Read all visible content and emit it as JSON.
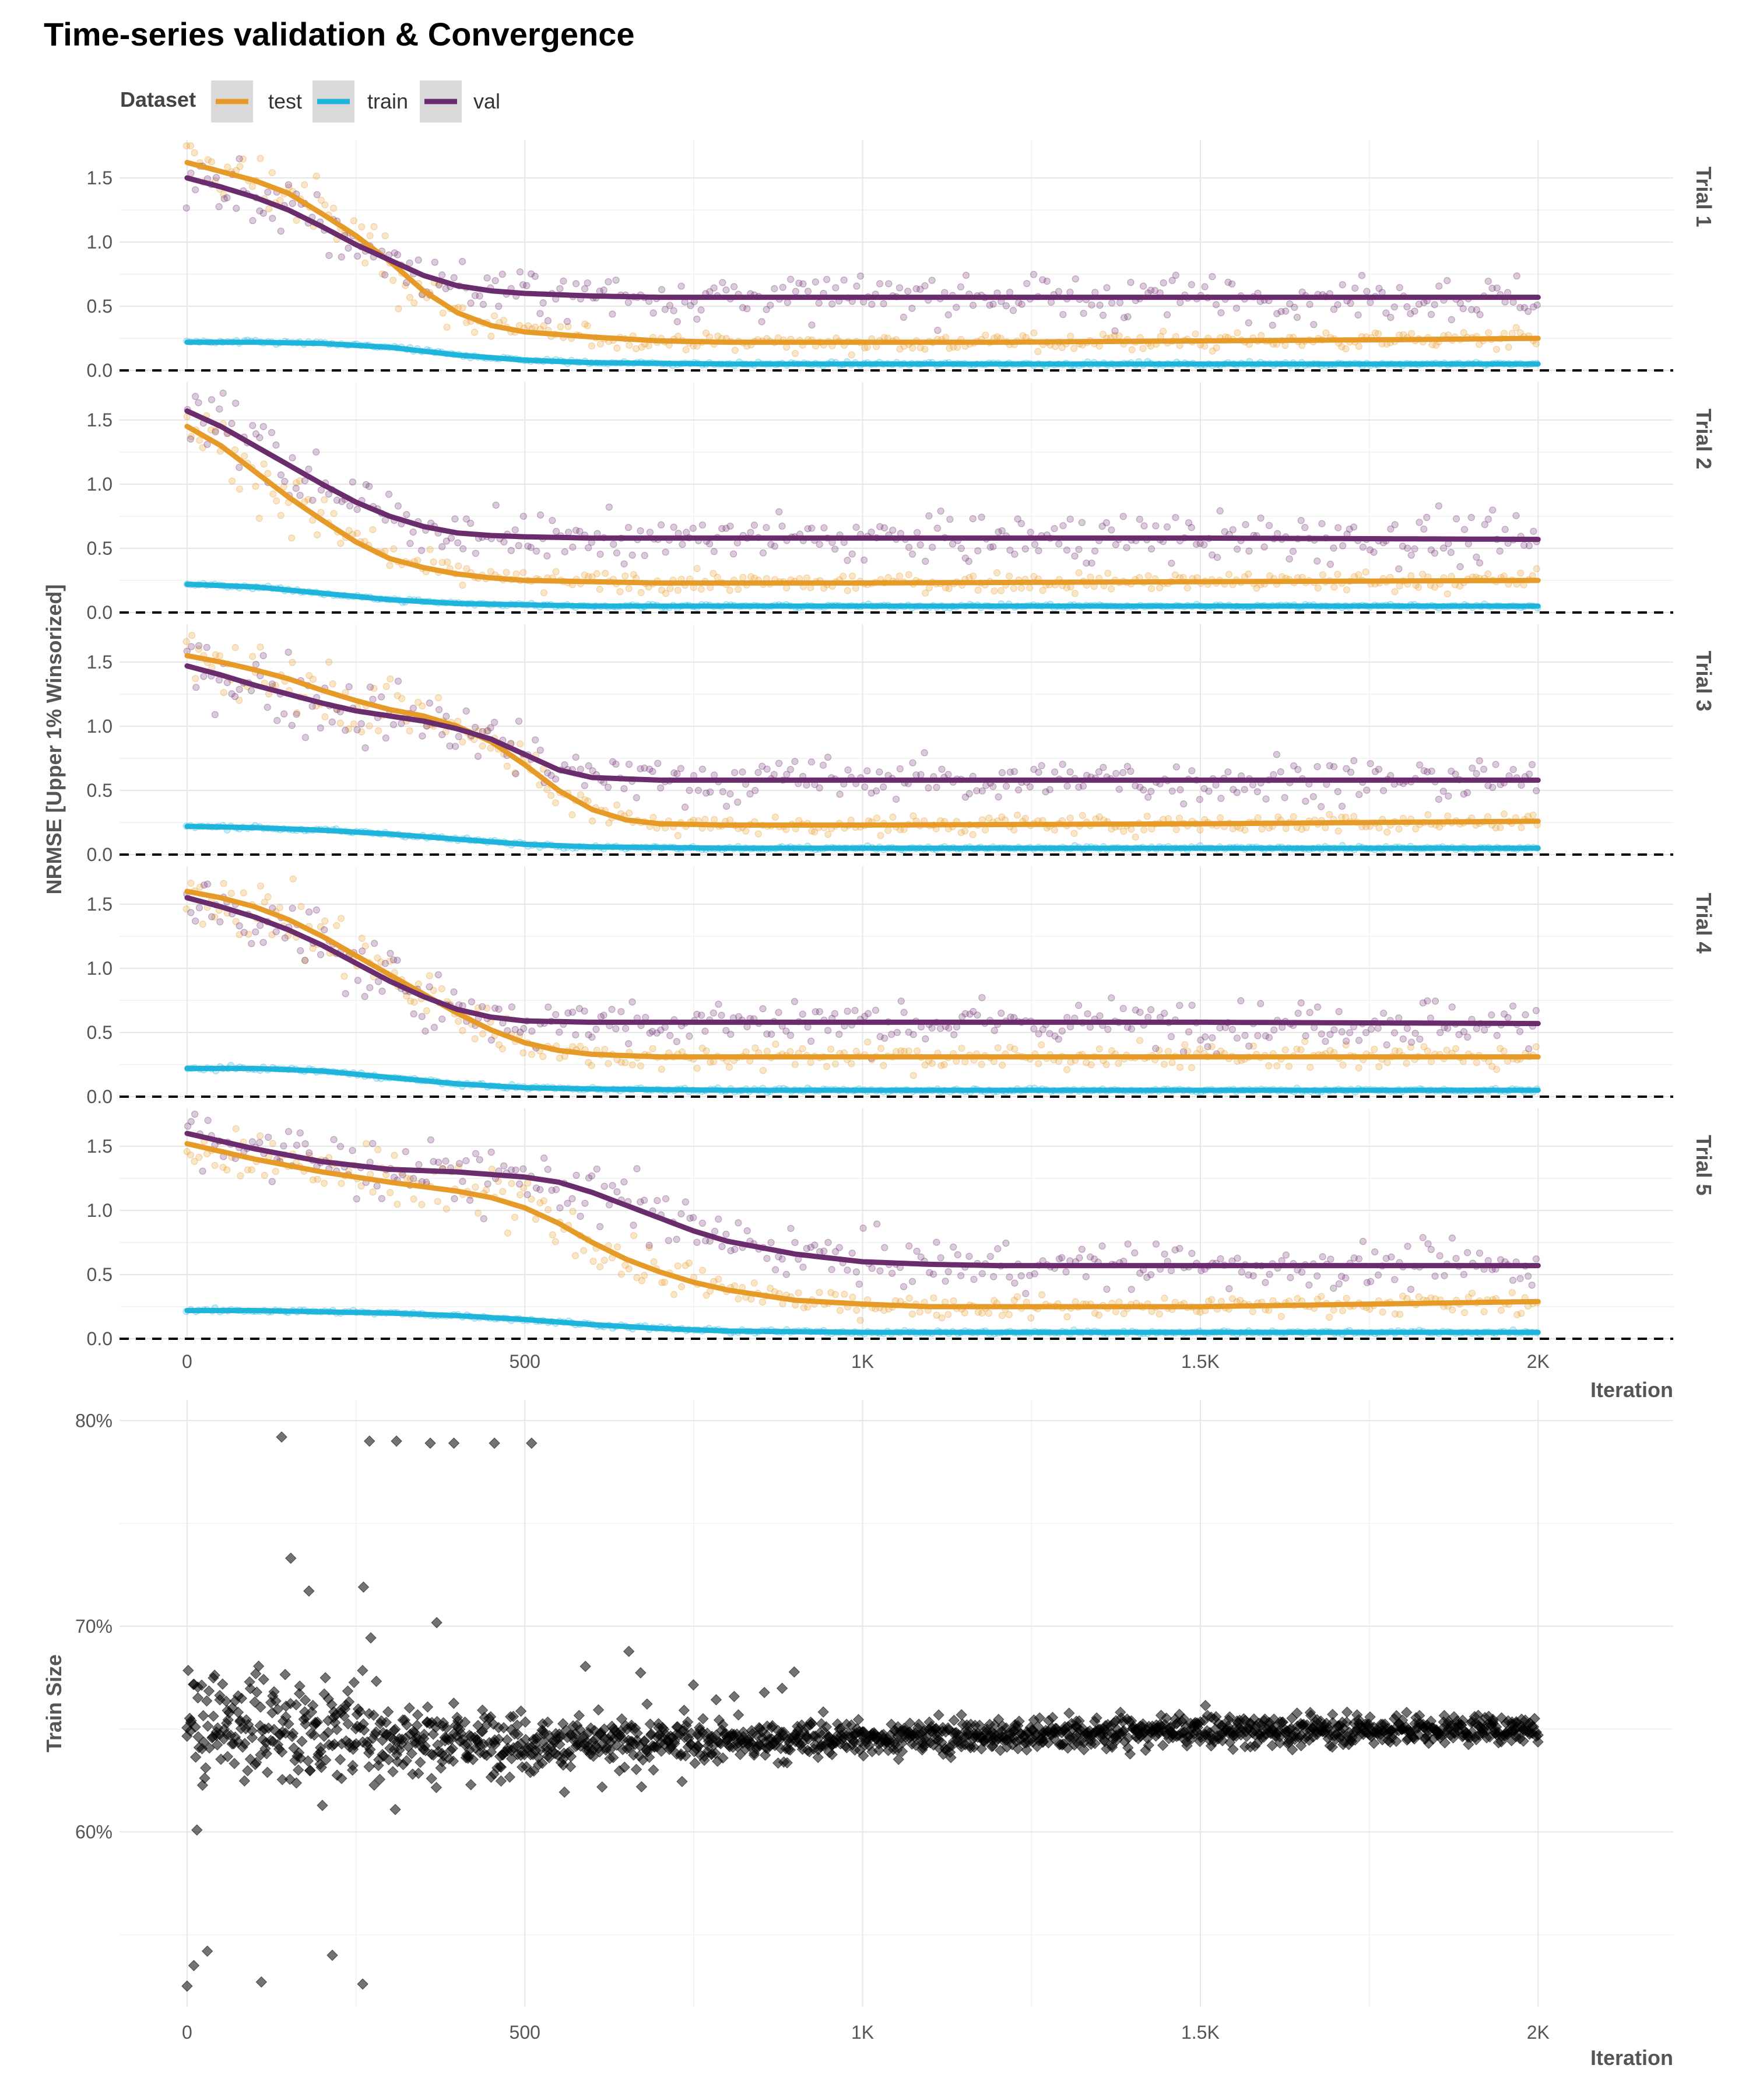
{
  "title": "Time-series validation & Convergence",
  "legend": {
    "title": "Dataset",
    "items": [
      {
        "label": "test",
        "color": "#E69A28"
      },
      {
        "label": "train",
        "color": "#1EB4DC"
      },
      {
        "label": "val",
        "color": "#6B2C6E"
      }
    ]
  },
  "chart_data": [
    {
      "type": "scatter",
      "subtype": "faceted scatter with smoothed trend lines",
      "title": "Time-series validation & Convergence",
      "xlabel": "Iteration",
      "ylabel": "NRMSE [Upper 1% Winsorized]",
      "xlim": [
        -100,
        2200
      ],
      "ylim": [
        0,
        1.75
      ],
      "x_ticks": [
        0,
        500,
        1000,
        1500,
        2000
      ],
      "x_tick_labels": [
        "0",
        "500",
        "1K",
        "1.5K",
        "2K"
      ],
      "y_ticks": [
        0,
        0.5,
        1,
        1.5
      ],
      "y_tick_labels": [
        "0.0",
        "0.5",
        "1.0",
        "1.5"
      ],
      "reference_line": {
        "y": 0,
        "style": "dashed",
        "color": "#000000"
      },
      "grid": true,
      "legend_position": "top",
      "point_alpha": 0.25,
      "facets": [
        {
          "label": "Trial 1",
          "series": [
            {
              "name": "test",
              "color": "#E69A28",
              "x": [
                0,
                50,
                100,
                150,
                200,
                250,
                300,
                350,
                400,
                450,
                500,
                600,
                700,
                800,
                1000,
                1200,
                1500,
                1800,
                2000
              ],
              "y": [
                1.62,
                1.55,
                1.48,
                1.38,
                1.22,
                1.05,
                0.85,
                0.62,
                0.45,
                0.35,
                0.3,
                0.26,
                0.23,
                0.22,
                0.22,
                0.22,
                0.23,
                0.24,
                0.25
              ]
            },
            {
              "name": "train",
              "color": "#1EB4DC",
              "x": [
                0,
                100,
                200,
                300,
                400,
                500,
                600,
                800,
                1000,
                1500,
                2000
              ],
              "y": [
                0.22,
                0.22,
                0.21,
                0.18,
                0.12,
                0.08,
                0.06,
                0.05,
                0.05,
                0.05,
                0.05
              ]
            },
            {
              "name": "val",
              "color": "#6B2C6E",
              "x": [
                0,
                50,
                100,
                150,
                200,
                250,
                300,
                350,
                400,
                450,
                500,
                600,
                700,
                800,
                1000,
                1500,
                2000
              ],
              "y": [
                1.5,
                1.43,
                1.35,
                1.25,
                1.12,
                0.98,
                0.86,
                0.74,
                0.66,
                0.62,
                0.6,
                0.58,
                0.57,
                0.57,
                0.57,
                0.57,
                0.57
              ]
            }
          ]
        },
        {
          "label": "Trial 2",
          "series": [
            {
              "name": "test",
              "color": "#E69A28",
              "x": [
                0,
                50,
                100,
                150,
                200,
                250,
                300,
                350,
                400,
                450,
                500,
                600,
                700,
                800,
                1000,
                1500,
                2000
              ],
              "y": [
                1.45,
                1.3,
                1.1,
                0.9,
                0.72,
                0.55,
                0.42,
                0.35,
                0.3,
                0.27,
                0.25,
                0.24,
                0.23,
                0.23,
                0.23,
                0.24,
                0.25
              ]
            },
            {
              "name": "train",
              "color": "#1EB4DC",
              "x": [
                0,
                100,
                200,
                300,
                400,
                500,
                600,
                800,
                1000,
                1500,
                2000
              ],
              "y": [
                0.22,
                0.2,
                0.15,
                0.1,
                0.07,
                0.06,
                0.05,
                0.05,
                0.05,
                0.05,
                0.05
              ]
            },
            {
              "name": "val",
              "color": "#6B2C6E",
              "x": [
                0,
                50,
                100,
                150,
                200,
                250,
                300,
                350,
                400,
                450,
                500,
                600,
                800,
                1000,
                1500,
                2000
              ],
              "y": [
                1.57,
                1.45,
                1.3,
                1.15,
                1.0,
                0.86,
                0.75,
                0.67,
                0.62,
                0.6,
                0.59,
                0.58,
                0.58,
                0.58,
                0.58,
                0.57
              ]
            }
          ]
        },
        {
          "label": "Trial 3",
          "series": [
            {
              "name": "test",
              "color": "#E69A28",
              "x": [
                0,
                50,
                100,
                150,
                200,
                250,
                300,
                350,
                400,
                450,
                500,
                550,
                600,
                650,
                700,
                800,
                1000,
                1500,
                2000
              ],
              "y": [
                1.55,
                1.5,
                1.44,
                1.37,
                1.28,
                1.2,
                1.13,
                1.08,
                1.0,
                0.88,
                0.7,
                0.5,
                0.35,
                0.27,
                0.24,
                0.23,
                0.23,
                0.24,
                0.26
              ]
            },
            {
              "name": "train",
              "color": "#1EB4DC",
              "x": [
                0,
                100,
                200,
                300,
                400,
                500,
                600,
                800,
                1000,
                1500,
                2000
              ],
              "y": [
                0.22,
                0.21,
                0.19,
                0.16,
                0.12,
                0.08,
                0.06,
                0.05,
                0.05,
                0.05,
                0.05
              ]
            },
            {
              "name": "val",
              "color": "#6B2C6E",
              "x": [
                0,
                50,
                100,
                150,
                200,
                250,
                300,
                350,
                400,
                450,
                500,
                550,
                600,
                700,
                800,
                1000,
                1500,
                2000
              ],
              "y": [
                1.47,
                1.4,
                1.32,
                1.25,
                1.18,
                1.12,
                1.08,
                1.04,
                0.98,
                0.9,
                0.78,
                0.66,
                0.6,
                0.58,
                0.58,
                0.58,
                0.58,
                0.58
              ]
            }
          ]
        },
        {
          "label": "Trial 4",
          "series": [
            {
              "name": "test",
              "color": "#E69A28",
              "x": [
                0,
                50,
                100,
                150,
                200,
                250,
                300,
                350,
                400,
                450,
                500,
                550,
                600,
                700,
                800,
                1000,
                1500,
                2000
              ],
              "y": [
                1.6,
                1.55,
                1.48,
                1.38,
                1.25,
                1.1,
                0.95,
                0.8,
                0.65,
                0.52,
                0.42,
                0.36,
                0.33,
                0.31,
                0.31,
                0.31,
                0.31,
                0.31
              ]
            },
            {
              "name": "train",
              "color": "#1EB4DC",
              "x": [
                0,
                100,
                200,
                300,
                400,
                500,
                600,
                800,
                1000,
                1500,
                2000
              ],
              "y": [
                0.22,
                0.22,
                0.2,
                0.15,
                0.1,
                0.07,
                0.06,
                0.05,
                0.05,
                0.05,
                0.05
              ]
            },
            {
              "name": "val",
              "color": "#6B2C6E",
              "x": [
                0,
                50,
                100,
                150,
                200,
                250,
                300,
                350,
                400,
                450,
                500,
                600,
                700,
                800,
                1000,
                1500,
                2000
              ],
              "y": [
                1.55,
                1.48,
                1.4,
                1.3,
                1.18,
                1.04,
                0.9,
                0.78,
                0.68,
                0.62,
                0.59,
                0.58,
                0.58,
                0.58,
                0.58,
                0.58,
                0.57
              ]
            }
          ]
        },
        {
          "label": "Trial 5",
          "series": [
            {
              "name": "test",
              "color": "#E69A28",
              "x": [
                0,
                100,
                200,
                300,
                400,
                450,
                500,
                550,
                600,
                650,
                700,
                750,
                800,
                900,
                1000,
                1100,
                1200,
                1500,
                2000
              ],
              "y": [
                1.52,
                1.4,
                1.3,
                1.22,
                1.15,
                1.1,
                1.02,
                0.9,
                0.75,
                0.62,
                0.52,
                0.44,
                0.38,
                0.3,
                0.27,
                0.25,
                0.25,
                0.25,
                0.29
              ]
            },
            {
              "name": "train",
              "color": "#1EB4DC",
              "x": [
                0,
                100,
                200,
                300,
                400,
                500,
                600,
                700,
                800,
                1000,
                1500,
                2000
              ],
              "y": [
                0.22,
                0.22,
                0.21,
                0.2,
                0.18,
                0.15,
                0.11,
                0.08,
                0.06,
                0.05,
                0.05,
                0.05
              ]
            },
            {
              "name": "val",
              "color": "#6B2C6E",
              "x": [
                0,
                100,
                200,
                300,
                400,
                500,
                550,
                600,
                650,
                700,
                750,
                800,
                900,
                1000,
                1100,
                1200,
                1500,
                2000
              ],
              "y": [
                1.6,
                1.48,
                1.38,
                1.32,
                1.3,
                1.26,
                1.22,
                1.14,
                1.04,
                0.94,
                0.84,
                0.76,
                0.66,
                0.6,
                0.58,
                0.57,
                0.57,
                0.57
              ]
            }
          ]
        }
      ]
    },
    {
      "type": "scatter",
      "subtype": "diamond markers",
      "xlabel": "Iteration",
      "ylabel": "Train Size",
      "xlim": [
        -100,
        2200
      ],
      "ylim": [
        51.5,
        81
      ],
      "x_ticks": [
        0,
        500,
        1000,
        1500,
        2000
      ],
      "x_tick_labels": [
        "0",
        "500",
        "1K",
        "1.5K",
        "2K"
      ],
      "y_ticks": [
        60,
        70,
        80
      ],
      "y_tick_labels": [
        "60%",
        "70%",
        "80%"
      ],
      "grid": true,
      "point_color": "#000000",
      "point_alpha": 0.55,
      "central_tendency": {
        "x": [
          0,
          100,
          200,
          400,
          600,
          800,
          1000,
          1500,
          2000
        ],
        "center": [
          65.5,
          65.2,
          64.8,
          64.4,
          64.3,
          64.4,
          64.6,
          64.9,
          65.0
        ],
        "spread": [
          6.0,
          5.5,
          4.5,
          3.2,
          2.5,
          2.0,
          1.6,
          1.4,
          1.3
        ]
      },
      "notable_points": [
        {
          "x": 0,
          "y": 52.5
        },
        {
          "x": 10,
          "y": 53.5
        },
        {
          "x": 30,
          "y": 54.2
        },
        {
          "x": 110,
          "y": 52.7
        },
        {
          "x": 215,
          "y": 54.0
        },
        {
          "x": 260,
          "y": 52.6
        },
        {
          "x": 140,
          "y": 79.2
        },
        {
          "x": 270,
          "y": 79.0
        },
        {
          "x": 310,
          "y": 79.0
        },
        {
          "x": 360,
          "y": 78.9
        },
        {
          "x": 395,
          "y": 78.9
        },
        {
          "x": 455,
          "y": 78.9
        },
        {
          "x": 510,
          "y": 78.9
        }
      ]
    }
  ]
}
